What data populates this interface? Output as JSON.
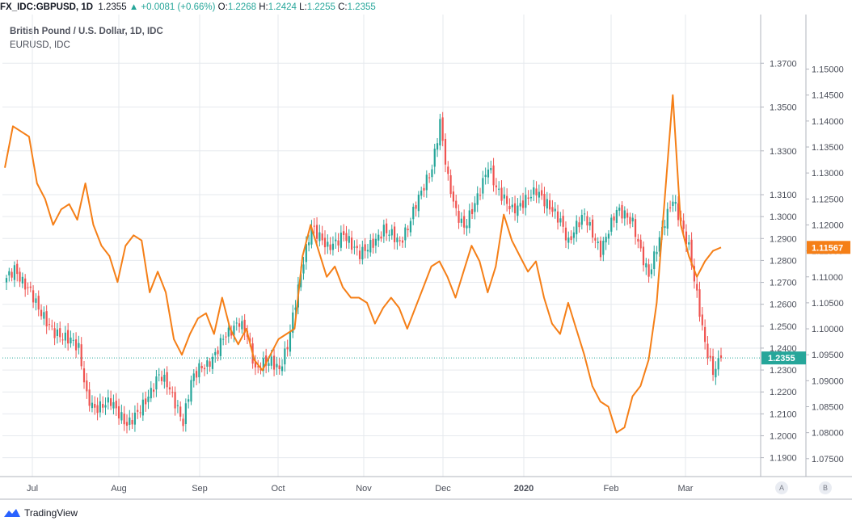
{
  "header": {
    "symbol": "FX_IDC:GBPUSD, 1D",
    "last": "1.2355",
    "change": "+0.0081 (+0.66%)",
    "open_label": "O:",
    "open": "1.2268",
    "high_label": "H:",
    "high": "1.2424",
    "low_label": "L:",
    "low": "1.2255",
    "close_label": "C:",
    "close": "1.2355"
  },
  "legend": {
    "main": "British Pound / U.S. Dollar, 1D, IDC",
    "compare": "EURUSD, IDC"
  },
  "colors": {
    "up": "#26a69a",
    "down": "#ef5350",
    "compare_line": "#f57f17",
    "grid": "#e6e9ee"
  },
  "buttons": {
    "a": "A",
    "b": "B"
  },
  "brand": {
    "name": "TradingView"
  },
  "chart_data": {
    "type": "candlestick",
    "x_ticks": [
      "Jul",
      "Aug",
      "Sep",
      "Oct",
      "Nov",
      "Dec",
      "2020",
      "Feb",
      "Mar"
    ],
    "right_axis_ticks": [
      "1.3700",
      "1.3500",
      "1.3300",
      "1.3100",
      "1.3000",
      "1.2900",
      "1.2800",
      "1.2700",
      "1.2600",
      "1.2500",
      "1.2400",
      "1.2300",
      "1.2200",
      "1.2100",
      "1.2000",
      "1.1900"
    ],
    "left_axis_ticks": [
      "1.15000",
      "1.14500",
      "1.14000",
      "1.13500",
      "1.13000",
      "1.12500",
      "1.12000",
      "1.11500",
      "1.11000",
      "1.10500",
      "1.10000",
      "1.09500",
      "1.09000",
      "1.08500",
      "1.08000",
      "1.07500"
    ],
    "last_price_gbpusd": "1.2355",
    "last_price_eurusd": "1.11567",
    "series": [
      {
        "name": "British Pound / U.S. Dollar",
        "type": "candlestick",
        "close_path": [
          1.272,
          1.276,
          1.27,
          1.266,
          1.258,
          1.252,
          1.247,
          1.245,
          1.244,
          1.24,
          1.218,
          1.212,
          1.214,
          1.216,
          1.21,
          1.205,
          1.209,
          1.214,
          1.22,
          1.228,
          1.224,
          1.215,
          1.206,
          1.225,
          1.231,
          1.232,
          1.237,
          1.245,
          1.248,
          1.252,
          1.246,
          1.23,
          1.233,
          1.234,
          1.23,
          1.241,
          1.261,
          1.28,
          1.295,
          1.291,
          1.286,
          1.288,
          1.292,
          1.287,
          1.283,
          1.286,
          1.289,
          1.294,
          1.292,
          1.288,
          1.295,
          1.306,
          1.314,
          1.322,
          1.343,
          1.317,
          1.302,
          1.295,
          1.303,
          1.312,
          1.323,
          1.313,
          1.308,
          1.303,
          1.305,
          1.309,
          1.312,
          1.307,
          1.303,
          1.298,
          1.288,
          1.296,
          1.301,
          1.292,
          1.284,
          1.294,
          1.303,
          1.301,
          1.297,
          1.284,
          1.273,
          1.286,
          1.298,
          1.308,
          1.297,
          1.286,
          1.264,
          1.242,
          1.229,
          1.2355
        ]
      },
      {
        "name": "EURUSD",
        "type": "line",
        "values": [
          1.131,
          1.139,
          1.138,
          1.137,
          1.128,
          1.125,
          1.12,
          1.123,
          1.124,
          1.121,
          1.128,
          1.12,
          1.116,
          1.114,
          1.109,
          1.116,
          1.118,
          1.117,
          1.107,
          1.111,
          1.107,
          1.098,
          1.095,
          1.099,
          1.102,
          1.103,
          1.099,
          1.106,
          1.1,
          1.097,
          1.1,
          1.094,
          1.092,
          1.095,
          1.098,
          1.099,
          1.1,
          1.114,
          1.12,
          1.115,
          1.11,
          1.112,
          1.108,
          1.106,
          1.106,
          1.105,
          1.101,
          1.104,
          1.106,
          1.104,
          1.1,
          1.104,
          1.108,
          1.112,
          1.113,
          1.11,
          1.106,
          1.111,
          1.116,
          1.113,
          1.107,
          1.112,
          1.122,
          1.117,
          1.114,
          1.111,
          1.113,
          1.106,
          1.101,
          1.099,
          1.105,
          1.1,
          1.095,
          1.089,
          1.086,
          1.085,
          1.08,
          1.081,
          1.087,
          1.089,
          1.094,
          1.105,
          1.125,
          1.145,
          1.12,
          1.114,
          1.11,
          1.113,
          1.115,
          1.11567
        ]
      }
    ]
  }
}
